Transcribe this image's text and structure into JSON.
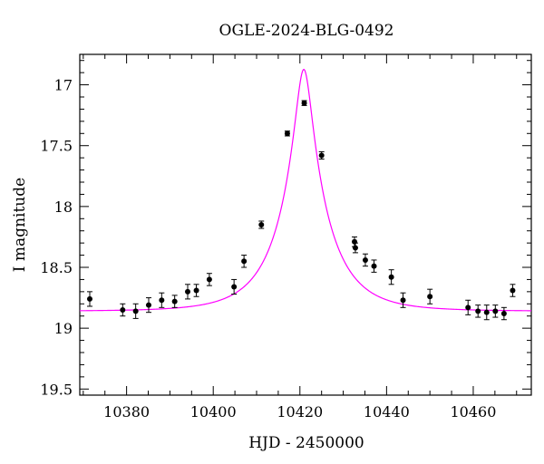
{
  "chart_data": {
    "type": "scatter",
    "title": "OGLE-2024-BLG-0492",
    "xlabel": "HJD - 2450000",
    "ylabel": "I magnitude",
    "xlim": [
      10369.2,
      10473.4
    ],
    "ylim": [
      19.55,
      16.75
    ],
    "y_inverted": true,
    "x_ticks": [
      10380,
      10400,
      10420,
      10440,
      10460
    ],
    "y_ticks": [
      17,
      17.5,
      18,
      18.5,
      19,
      19.5
    ],
    "y_tick_labels": [
      "17",
      "17.5",
      "18",
      "18.5",
      "19",
      "19.5"
    ],
    "grid": false,
    "colors": {
      "points": "#000000",
      "model": "#ff00ff"
    },
    "model": {
      "name": "",
      "t0": 10420.9,
      "u0": 0.162,
      "tE": 11.0,
      "baseline": 18.86
    },
    "points": [
      {
        "x": 10371.5,
        "y": 18.76,
        "err": 0.06
      },
      {
        "x": 10379.1,
        "y": 18.85,
        "err": 0.05
      },
      {
        "x": 10382.1,
        "y": 18.86,
        "err": 0.06
      },
      {
        "x": 10385.1,
        "y": 18.81,
        "err": 0.06
      },
      {
        "x": 10388.1,
        "y": 18.77,
        "err": 0.06
      },
      {
        "x": 10391.1,
        "y": 18.78,
        "err": 0.05
      },
      {
        "x": 10394.1,
        "y": 18.7,
        "err": 0.06
      },
      {
        "x": 10396.1,
        "y": 18.69,
        "err": 0.05
      },
      {
        "x": 10399.1,
        "y": 18.6,
        "err": 0.05
      },
      {
        "x": 10404.8,
        "y": 18.66,
        "err": 0.06
      },
      {
        "x": 10407.1,
        "y": 18.45,
        "err": 0.05
      },
      {
        "x": 10411.1,
        "y": 18.15,
        "err": 0.03
      },
      {
        "x": 10417.1,
        "y": 17.4,
        "err": 0.02
      },
      {
        "x": 10421.0,
        "y": 17.15,
        "err": 0.02
      },
      {
        "x": 10425.0,
        "y": 17.58,
        "err": 0.03
      },
      {
        "x": 10432.6,
        "y": 18.29,
        "err": 0.04
      },
      {
        "x": 10432.8,
        "y": 18.34,
        "err": 0.04
      },
      {
        "x": 10435.1,
        "y": 18.44,
        "err": 0.05
      },
      {
        "x": 10437.1,
        "y": 18.49,
        "err": 0.05
      },
      {
        "x": 10441.1,
        "y": 18.58,
        "err": 0.06
      },
      {
        "x": 10443.8,
        "y": 18.77,
        "err": 0.06
      },
      {
        "x": 10450.0,
        "y": 18.74,
        "err": 0.06
      },
      {
        "x": 10458.8,
        "y": 18.83,
        "err": 0.06
      },
      {
        "x": 10461.1,
        "y": 18.86,
        "err": 0.05
      },
      {
        "x": 10463.1,
        "y": 18.87,
        "err": 0.06
      },
      {
        "x": 10465.1,
        "y": 18.86,
        "err": 0.05
      },
      {
        "x": 10467.1,
        "y": 18.88,
        "err": 0.05
      },
      {
        "x": 10469.1,
        "y": 18.69,
        "err": 0.05
      }
    ]
  }
}
